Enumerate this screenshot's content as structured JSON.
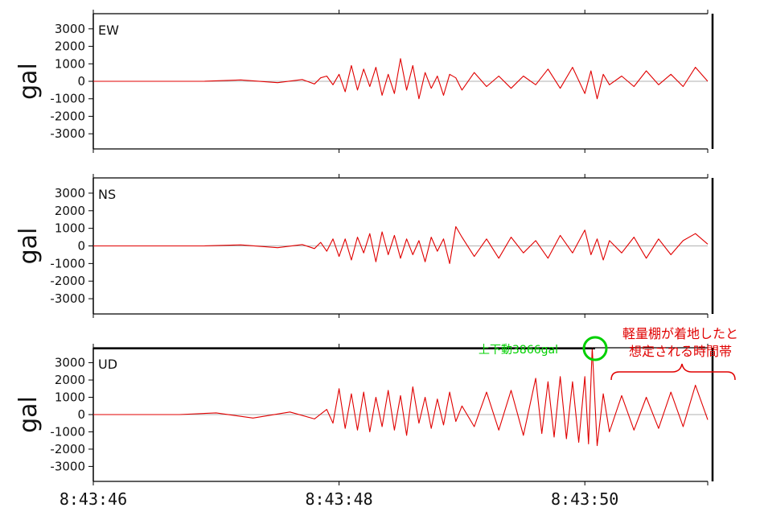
{
  "chart_data": [
    {
      "type": "line",
      "title": "EW",
      "ylabel": "gal",
      "ylim": [
        -3866,
        3866
      ],
      "yticks": [
        "3000",
        "2000",
        "1000",
        "0",
        "-1000",
        "-2000",
        "-3000"
      ],
      "x_range": [
        "8:43:46",
        "8:43:51"
      ],
      "series": [
        {
          "color": "#e00000",
          "x": [
            46.0,
            46.5,
            46.9,
            47.2,
            47.5,
            47.7,
            47.8,
            47.85,
            47.9,
            47.95,
            48.0,
            48.05,
            48.1,
            48.15,
            48.2,
            48.25,
            48.3,
            48.35,
            48.4,
            48.45,
            48.5,
            48.55,
            48.6,
            48.65,
            48.7,
            48.75,
            48.8,
            48.85,
            48.9,
            48.95,
            49.0,
            49.1,
            49.2,
            49.3,
            49.4,
            49.5,
            49.6,
            49.7,
            49.8,
            49.9,
            50.0,
            50.05,
            50.1,
            50.15,
            50.2,
            50.3,
            50.4,
            50.5,
            50.6,
            50.7,
            50.8,
            50.9,
            51.0
          ],
          "y": [
            0,
            0,
            0,
            80,
            -80,
            100,
            -150,
            200,
            300,
            -200,
            400,
            -600,
            900,
            -500,
            700,
            -300,
            800,
            -800,
            400,
            -700,
            1300,
            -500,
            900,
            -1000,
            500,
            -400,
            300,
            -800,
            400,
            200,
            -500,
            500,
            -300,
            300,
            -400,
            300,
            -200,
            700,
            -400,
            800,
            -700,
            600,
            -1000,
            400,
            -200,
            300,
            -300,
            600,
            -200,
            400,
            -300,
            800,
            0
          ]
        }
      ]
    },
    {
      "type": "line",
      "title": "NS",
      "ylabel": "gal",
      "ylim": [
        -3866,
        3866
      ],
      "yticks": [
        "3000",
        "2000",
        "1000",
        "0",
        "-1000",
        "-2000",
        "-3000"
      ],
      "x_range": [
        "8:43:46",
        "8:43:51"
      ],
      "series": [
        {
          "color": "#e00000",
          "x": [
            46.0,
            46.5,
            46.9,
            47.2,
            47.5,
            47.7,
            47.8,
            47.85,
            47.9,
            47.95,
            48.0,
            48.05,
            48.1,
            48.15,
            48.2,
            48.25,
            48.3,
            48.35,
            48.4,
            48.45,
            48.5,
            48.55,
            48.6,
            48.65,
            48.7,
            48.75,
            48.8,
            48.85,
            48.9,
            48.95,
            49.0,
            49.1,
            49.2,
            49.3,
            49.4,
            49.5,
            49.6,
            49.7,
            49.8,
            49.9,
            50.0,
            50.05,
            50.1,
            50.15,
            50.2,
            50.3,
            50.4,
            50.5,
            50.6,
            50.7,
            50.8,
            50.9,
            51.0
          ],
          "y": [
            0,
            0,
            0,
            60,
            -100,
            80,
            -150,
            200,
            -300,
            400,
            -600,
            400,
            -800,
            500,
            -400,
            700,
            -900,
            800,
            -500,
            600,
            -700,
            400,
            -500,
            300,
            -900,
            500,
            -300,
            400,
            -1000,
            1100,
            500,
            -600,
            400,
            -700,
            500,
            -400,
            300,
            -700,
            600,
            -400,
            900,
            -500,
            400,
            -800,
            300,
            -400,
            500,
            -700,
            400,
            -500,
            300,
            700,
            100
          ]
        }
      ]
    },
    {
      "type": "line",
      "title": "UD",
      "ylabel": "gal",
      "ylim": [
        -3866,
        3866
      ],
      "yticks": [
        "3000",
        "2000",
        "1000",
        "0",
        "-1000",
        "-2000",
        "-3000"
      ],
      "x_range": [
        "8:43:46",
        "8:43:51"
      ],
      "series": [
        {
          "color": "#e00000",
          "x": [
            46.0,
            46.5,
            46.7,
            47.0,
            47.3,
            47.6,
            47.8,
            47.9,
            47.95,
            48.0,
            48.05,
            48.1,
            48.15,
            48.2,
            48.25,
            48.3,
            48.35,
            48.4,
            48.45,
            48.5,
            48.55,
            48.6,
            48.65,
            48.7,
            48.75,
            48.8,
            48.85,
            48.9,
            48.95,
            49.0,
            49.1,
            49.2,
            49.3,
            49.4,
            49.5,
            49.6,
            49.65,
            49.7,
            49.75,
            49.8,
            49.85,
            49.9,
            49.95,
            50.0,
            50.03,
            50.06,
            50.1,
            50.15,
            50.2,
            50.3,
            50.4,
            50.5,
            50.6,
            50.7,
            50.8,
            50.9,
            51.0
          ],
          "y": [
            0,
            0,
            0,
            100,
            -200,
            150,
            -250,
            300,
            -500,
            1500,
            -800,
            1200,
            -900,
            1300,
            -1000,
            1000,
            -700,
            1400,
            -900,
            1100,
            -1200,
            1600,
            -500,
            1000,
            -800,
            900,
            -600,
            1300,
            -400,
            500,
            -700,
            1300,
            -900,
            1400,
            -1200,
            2100,
            -1100,
            1900,
            -1300,
            2200,
            -1400,
            1900,
            -1600,
            2200,
            -1700,
            3866,
            -1800,
            1200,
            -1000,
            1100,
            -900,
            1000,
            -800,
            1300,
            -700,
            1700,
            -300
          ]
        }
      ]
    }
  ],
  "x_axis": {
    "ticks": [
      "8:43:46",
      "8:43:48",
      "8:43:50"
    ],
    "tick_values": [
      46,
      48,
      50
    ]
  },
  "annotations": {
    "peak_label": "上下動3866gal",
    "note_line1": "軽量棚が着地したと",
    "note_line2": "想定される時間帯",
    "note_color": "#e00000",
    "peak_color": "#00d000"
  }
}
